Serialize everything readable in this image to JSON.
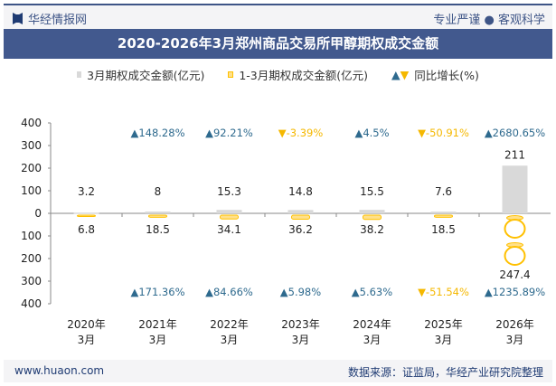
{
  "header": {
    "logo_text": "华经情报网",
    "slogan": "专业严谨 ● 客观科学"
  },
  "footer": {
    "website": "www.huaon.com",
    "source": "数据来源：证监局，华经产业研究院整理"
  },
  "colors": {
    "title_bg": "#42598e",
    "bar_march": "#d9d9d9",
    "bar_ytd": "#ffc000",
    "up": "#2e6a8e",
    "down": "#f5b800"
  },
  "chart_data": {
    "type": "bar",
    "title": "2020-2026年3月郑州商品交易所甲醇期权成交金额",
    "categories": [
      "2020年\n3月",
      "2021年\n3月",
      "2022年\n3月",
      "2023年\n3月",
      "2024年\n3月",
      "2025年\n3月",
      "2026年\n3月"
    ],
    "ylim": [
      -400,
      400
    ],
    "yticks": [
      400,
      300,
      200,
      100,
      0,
      100,
      200,
      300,
      400
    ],
    "legend_position": "top",
    "series": [
      {
        "name": "3月期权成交金额(亿元)",
        "direction": "up",
        "values": [
          3.2,
          8,
          15.3,
          14.8,
          15.5,
          7.6,
          211
        ],
        "yoy": [
          null,
          "148.28%",
          "92.21%",
          "-3.39%",
          "4.5%",
          "-50.91%",
          "2680.65%"
        ]
      },
      {
        "name": "1-3月期权成交金额(亿元)",
        "direction": "down",
        "values": [
          6.8,
          18.5,
          34.1,
          36.2,
          38.2,
          18.5,
          247.4
        ],
        "yoy": [
          null,
          "171.36%",
          "84.66%",
          "5.98%",
          "5.63%",
          "-51.54%",
          "1235.89%"
        ]
      }
    ],
    "yoy_legend": "同比增长(%)"
  }
}
